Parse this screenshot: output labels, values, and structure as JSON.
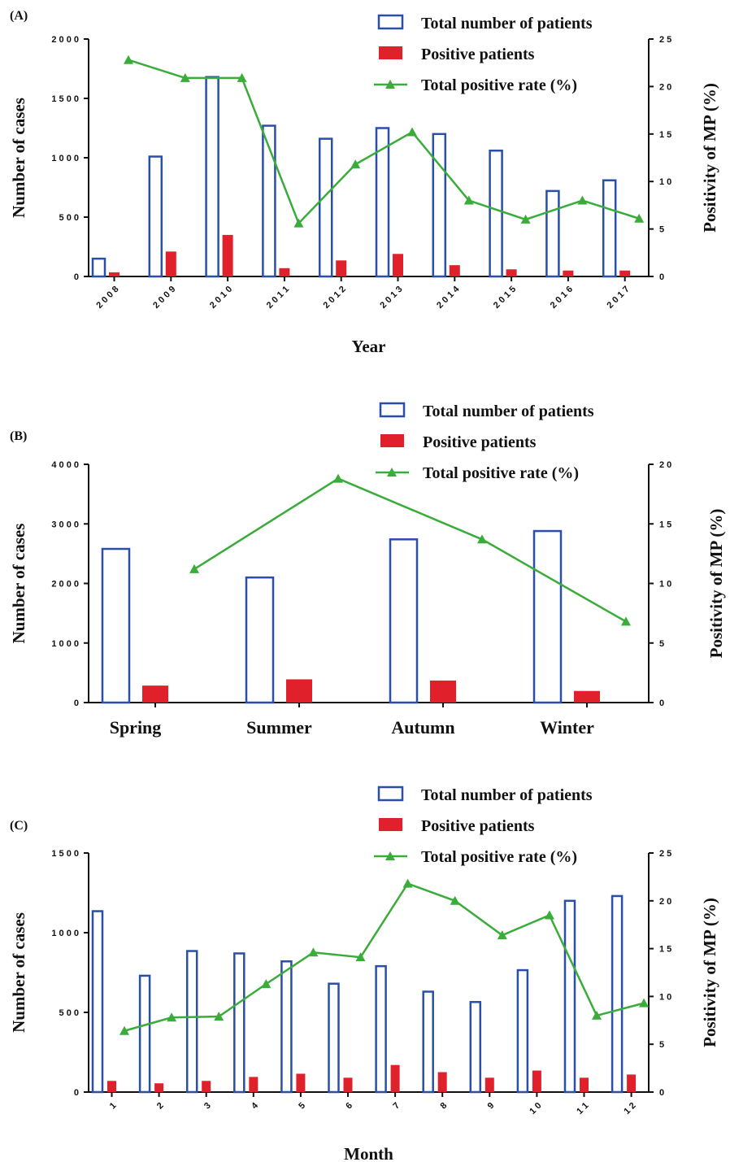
{
  "colors": {
    "total_bar": "#2a4fa8",
    "positive_bar": "#e0202a",
    "rate_line": "#3aac3a",
    "axis": "#111111"
  },
  "chart_data": [
    {
      "panel": "(A)",
      "type": "bar",
      "categories": [
        "2008",
        "2009",
        "2010",
        "2011",
        "2012",
        "2013",
        "2014",
        "2015",
        "2016",
        "2017"
      ],
      "xlabel": "Year",
      "ylabel": "Number of cases",
      "y2label": "Positivity of MP (%)",
      "ylim": [
        0,
        2000
      ],
      "yticks": [
        0,
        500,
        1000,
        1500,
        2000
      ],
      "y2lim": [
        0,
        25
      ],
      "y2ticks": [
        0,
        5,
        10,
        15,
        20,
        25
      ],
      "legend": [
        "Total number of patients",
        "Positive patients",
        "Total positive rate (%)"
      ],
      "series": [
        {
          "name": "Total number of patients",
          "kind": "bar-outline",
          "values": [
            150,
            1010,
            1680,
            1270,
            1160,
            1250,
            1200,
            1060,
            720,
            810
          ]
        },
        {
          "name": "Positive patients",
          "kind": "bar-filled",
          "values": [
            35,
            210,
            350,
            70,
            135,
            190,
            95,
            60,
            50,
            50
          ]
        },
        {
          "name": "Total positive rate (%)",
          "kind": "line",
          "axis": "right",
          "values": [
            22.8,
            20.9,
            20.9,
            5.6,
            11.8,
            15.2,
            8.0,
            6.0,
            8.0,
            6.1
          ]
        }
      ]
    },
    {
      "panel": "(B)",
      "type": "bar",
      "categories": [
        "Spring",
        "Summer",
        "Autumn",
        "Winter"
      ],
      "xlabel": "",
      "ylabel": "Number of cases",
      "y2label": "Positivity of MP (%)",
      "ylim": [
        0,
        4000
      ],
      "yticks": [
        0,
        1000,
        2000,
        3000,
        4000
      ],
      "y2lim": [
        0,
        20
      ],
      "y2ticks": [
        0,
        5,
        10,
        15,
        20
      ],
      "legend": [
        "Total number of patients",
        "Positive patients",
        "Total positive rate (%)"
      ],
      "series": [
        {
          "name": "Total number of patients",
          "kind": "bar-outline",
          "values": [
            2580,
            2100,
            2740,
            2880
          ]
        },
        {
          "name": "Positive patients",
          "kind": "bar-filled",
          "values": [
            285,
            390,
            370,
            195
          ]
        },
        {
          "name": "Total positive rate (%)",
          "kind": "line",
          "axis": "right",
          "values": [
            11.2,
            18.8,
            13.7,
            6.8
          ]
        }
      ]
    },
    {
      "panel": "(C)",
      "type": "bar",
      "categories": [
        "1",
        "2",
        "3",
        "4",
        "5",
        "6",
        "7",
        "8",
        "9",
        "10",
        "11",
        "12"
      ],
      "xlabel": "Month",
      "ylabel": "Number of cases",
      "y2label": "Positivity of MP (%)",
      "ylim": [
        0,
        1500
      ],
      "yticks": [
        0,
        500,
        1000,
        1500
      ],
      "y2lim": [
        0,
        25
      ],
      "y2ticks": [
        0,
        5,
        10,
        15,
        20,
        25
      ],
      "legend": [
        "Total number of patients",
        "Positive patients",
        "Total positive rate (%)"
      ],
      "series": [
        {
          "name": "Total number of patients",
          "kind": "bar-outline",
          "values": [
            1135,
            730,
            885,
            870,
            820,
            680,
            790,
            630,
            565,
            765,
            1200,
            1230
          ]
        },
        {
          "name": "Positive patients",
          "kind": "bar-filled",
          "values": [
            70,
            55,
            70,
            95,
            115,
            90,
            170,
            125,
            90,
            135,
            90,
            110
          ]
        },
        {
          "name": "Total positive rate (%)",
          "kind": "line",
          "axis": "right",
          "values": [
            6.4,
            7.8,
            7.9,
            11.3,
            14.6,
            14.1,
            21.8,
            20.0,
            16.4,
            18.5,
            8.0,
            9.3
          ]
        }
      ]
    }
  ]
}
